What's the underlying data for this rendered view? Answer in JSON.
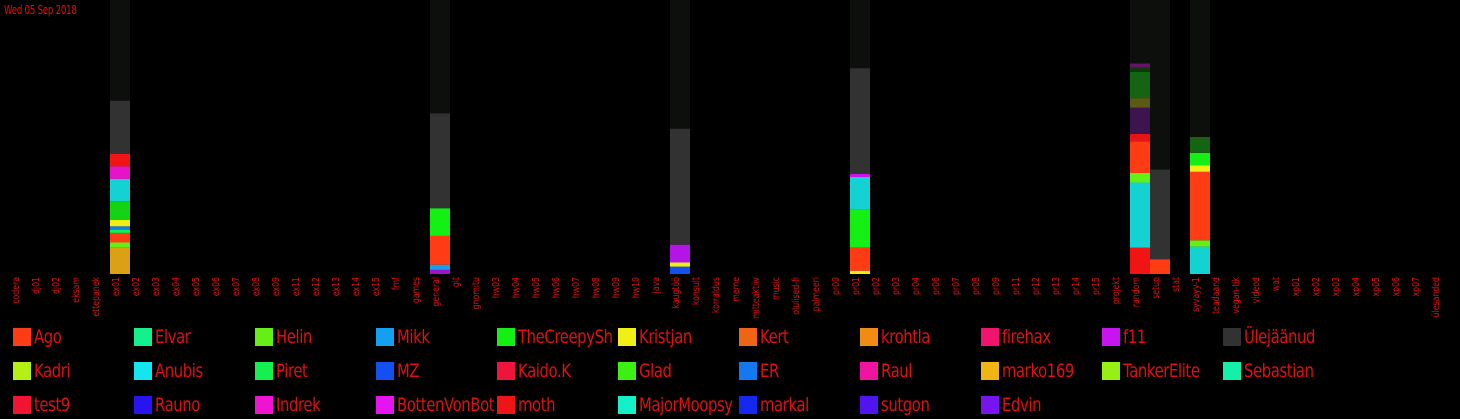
{
  "header": {
    "date": "Wed 05 Sep 2018"
  },
  "chart_data": {
    "type": "bar",
    "stacked": true,
    "title": "",
    "xlabel": "",
    "ylabel": "",
    "categories": [
      "codera",
      "dj01",
      "dj02",
      "eksam",
      "ettepanek",
      "ex01",
      "ex02",
      "ex03",
      "ex04",
      "ex05",
      "ex06",
      "ex07",
      "ex08",
      "ex09",
      "ex11",
      "ex12",
      "ex13",
      "ex14",
      "ex15",
      "fmf",
      "games",
      "general",
      "git",
      "gnomitu",
      "hw03",
      "hw04",
      "hw05",
      "hw06",
      "hw07",
      "hw08",
      "hw09",
      "hw10",
      "java",
      "kaugtöö",
      "konsult",
      "korraldus",
      "meme",
      "mitteaktiiv",
      "music",
      "olulised-fi",
      "palmeeri",
      "pr00",
      "pr01",
      "pr02",
      "pr03",
      "pr04",
      "pr06",
      "pr07",
      "pr08",
      "pr09",
      "pr11",
      "pr12",
      "pr13",
      "pr14",
      "pr15",
      "projekt",
      "random",
      "setup",
      "stat",
      "syvayy-1",
      "teadaand",
      "vegan-tik",
      "videod",
      "wat",
      "xp01",
      "xp02",
      "xp03",
      "xp04",
      "xp05",
      "xp06",
      "xp07",
      "ülesanded"
    ],
    "legend": [
      {
        "name": "Ago",
        "color": "#ff3c14"
      },
      {
        "name": "Elvar",
        "color": "#14f08c"
      },
      {
        "name": "Helin",
        "color": "#64f014"
      },
      {
        "name": "Mikk",
        "color": "#14a0f0"
      },
      {
        "name": "TheCreepySh",
        "color": "#14f014"
      },
      {
        "name": "Kristjan",
        "color": "#f0f014"
      },
      {
        "name": "Kert",
        "color": "#f06414"
      },
      {
        "name": "krohtla",
        "color": "#f08c14"
      },
      {
        "name": "firehax",
        "color": "#f0146e"
      },
      {
        "name": "f11",
        "color": "#c814f0"
      },
      {
        "name": "Ülejäänud",
        "color": "#323232"
      },
      {
        "name": "Kadri",
        "color": "#b4f014"
      },
      {
        "name": "Anubis",
        "color": "#14e6f0"
      },
      {
        "name": "Piret",
        "color": "#14f050"
      },
      {
        "name": "MZ",
        "color": "#1450f0"
      },
      {
        "name": "Kaido.K",
        "color": "#f0143c"
      },
      {
        "name": "Glad",
        "color": "#3cf014"
      },
      {
        "name": "ER",
        "color": "#1478f0"
      },
      {
        "name": "Raul",
        "color": "#f014a0"
      },
      {
        "name": "marko169",
        "color": "#f0b414"
      },
      {
        "name": "TankerElite",
        "color": "#96f014"
      },
      {
        "name": "Sebastian",
        "color": "#14f0aa"
      },
      {
        "name": "test9",
        "color": "#f01432"
      },
      {
        "name": "Rauno",
        "color": "#2814f0"
      },
      {
        "name": "Indrek",
        "color": "#f014d2"
      },
      {
        "name": "BottenVonBot",
        "color": "#e614f0"
      },
      {
        "name": "moth",
        "color": "#f01414"
      },
      {
        "name": "MajorMoopsy",
        "color": "#14f0c8"
      },
      {
        "name": "markal",
        "color": "#1428f0"
      },
      {
        "name": "sutgon",
        "color": "#5014f0"
      },
      {
        "name": "Edvin",
        "color": "#7814f0"
      }
    ],
    "bars": [
      {
        "category": "ex01",
        "total": 100,
        "segments": [
          {
            "series": "marko169",
            "value": 9.6,
            "color": "#dca014"
          },
          {
            "series": "Helin",
            "value": 1.9,
            "color": "#64f014"
          },
          {
            "series": "Ago",
            "value": 3.5,
            "color": "#ff3c14"
          },
          {
            "series": "Piret",
            "value": 1.2,
            "color": "#14f050"
          },
          {
            "series": "ER",
            "value": 1.2,
            "color": "#1478f0"
          },
          {
            "series": "Kristjan",
            "value": 2.3,
            "color": "#f0f014"
          },
          {
            "series": "Glad",
            "value": 6.9,
            "color": "#14d214"
          },
          {
            "series": "Anubis",
            "value": 8.1,
            "color": "#14d2d2"
          },
          {
            "series": "f11",
            "value": 4.6,
            "color": "#e614c8"
          },
          {
            "series": "moth",
            "value": 4.6,
            "color": "#f01414"
          },
          {
            "series": "Ülejäänud",
            "value": 19.3,
            "color": "#323232"
          }
        ]
      },
      {
        "category": "general",
        "total": 100,
        "segments": [
          {
            "series": "f11",
            "value": 1.5,
            "color": "#a014c8"
          },
          {
            "series": "Mikk",
            "value": 1.9,
            "color": "#14a0f0"
          },
          {
            "series": "Ago",
            "value": 10.5,
            "color": "#ff3c14"
          },
          {
            "series": "TheCreepySh",
            "value": 10.1,
            "color": "#14f014"
          },
          {
            "series": "Ülejäänud",
            "value": 34.6,
            "color": "#323232"
          }
        ]
      },
      {
        "category": "kaugtöö",
        "total": 100,
        "segments": [
          {
            "series": "MZ",
            "value": 2.7,
            "color": "#1450f0"
          },
          {
            "series": "Kristjan",
            "value": 1.5,
            "color": "#f0f014"
          },
          {
            "series": "f11",
            "value": 6.5,
            "color": "#b414e6"
          },
          {
            "series": "Ülejäänud",
            "value": 42.3,
            "color": "#323232"
          }
        ]
      },
      {
        "category": "pr01",
        "total": 100,
        "segments": [
          {
            "series": "Kristjan",
            "value": 1.2,
            "color": "#f0f014"
          },
          {
            "series": "Ago",
            "value": 8.5,
            "color": "#ff3c14"
          },
          {
            "series": "TheCreepySh",
            "value": 13.8,
            "color": "#14f014"
          },
          {
            "series": "Anubis",
            "value": 11.9,
            "color": "#14d2d2"
          },
          {
            "series": "f11",
            "value": 1.2,
            "color": "#c814f0"
          },
          {
            "series": "Ülejäänud",
            "value": 38.5,
            "color": "#323232"
          }
        ]
      },
      {
        "category": "random",
        "total": 100,
        "segments": [
          {
            "series": "moth",
            "value": 9.6,
            "color": "#f01414"
          },
          {
            "series": "Anubis",
            "value": 23.8,
            "color": "#14d2d2"
          },
          {
            "series": "Helin",
            "value": 3.5,
            "color": "#64f014"
          },
          {
            "series": "Ago",
            "value": 11.5,
            "color": "#ff3c14"
          },
          {
            "series": "Kadri",
            "value": 2.7,
            "color": "#e61414"
          },
          {
            "series": "sutgon",
            "value": 9.6,
            "color": "#3c1450"
          },
          {
            "series": "TankerElite",
            "value": 3.5,
            "color": "#5a5a14"
          },
          {
            "series": "Glad",
            "value": 9.6,
            "color": "#146414"
          },
          {
            "series": "ER",
            "value": 1.5,
            "color": "#0a3c0a"
          },
          {
            "series": "Raul",
            "value": 1.5,
            "color": "#641464"
          },
          {
            "series": "Ülejäänud",
            "value": 0,
            "color": "#323232"
          }
        ]
      },
      {
        "category": "setup",
        "total": 100,
        "segments": [
          {
            "series": "Ago",
            "value": 5.4,
            "color": "#ff3c14"
          },
          {
            "series": "Ülejäänud",
            "value": 32.7,
            "color": "#323232"
          }
        ]
      },
      {
        "category": "syvayy-1",
        "total": 100,
        "segments": [
          {
            "series": "Anubis",
            "value": 10.0,
            "color": "#14d2d2"
          },
          {
            "series": "Glad",
            "value": 2.3,
            "color": "#64f014"
          },
          {
            "series": "Ago",
            "value": 25.0,
            "color": "#ff3c14"
          },
          {
            "series": "Kristjan",
            "value": 2.3,
            "color": "#f0f014"
          },
          {
            "series": "TheCreepySh",
            "value": 4.6,
            "color": "#14f014"
          },
          {
            "series": "Piret",
            "value": 5.8,
            "color": "#146414"
          }
        ]
      }
    ]
  }
}
